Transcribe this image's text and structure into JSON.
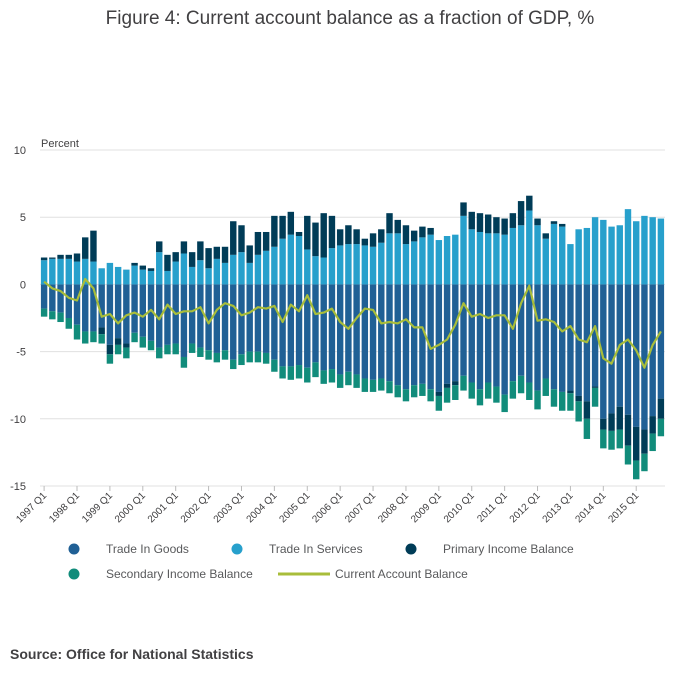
{
  "chart_data": {
    "type": "bar",
    "stacked": true,
    "title": "Figure 4: Current account balance as a fraction of GDP, %",
    "ylabel": "Percent",
    "ylim": [
      -15,
      10
    ],
    "yticks": [
      10,
      5,
      0,
      -5,
      -10,
      -15
    ],
    "grid": true,
    "start_year": 1997,
    "quarters_per_year": 4,
    "x_tick_labels": [
      "1997 Q1",
      "1998 Q1",
      "1999 Q1",
      "2000 Q1",
      "2001 Q1",
      "2002 Q1",
      "2003 Q1",
      "2004 Q1",
      "2005 Q1",
      "2006 Q1",
      "2007 Q1",
      "2008 Q1",
      "2009 Q1",
      "2010 Q1",
      "2011 Q1",
      "2012 Q1",
      "2013 Q1",
      "2014 Q1",
      "2015 Q1"
    ],
    "legend_position": "bottom",
    "series": [
      {
        "name": "Trade In Goods",
        "color": "#206095",
        "values": [
          -1.8,
          -2.0,
          -2.1,
          -2.5,
          -3.0,
          -3.5,
          -3.5,
          -3.2,
          -4.5,
          -4.0,
          -4.4,
          -3.6,
          -3.9,
          -4.2,
          -4.7,
          -4.5,
          -4.4,
          -5.4,
          -4.4,
          -4.7,
          -4.9,
          -5.1,
          -4.9,
          -5.6,
          -5.2,
          -5.0,
          -5.0,
          -5.1,
          -5.6,
          -6.1,
          -6.1,
          -6.0,
          -6.2,
          -5.8,
          -6.4,
          -6.3,
          -6.7,
          -6.5,
          -6.7,
          -7.0,
          -7.1,
          -7.0,
          -7.2,
          -7.5,
          -7.8,
          -7.5,
          -7.4,
          -7.8,
          -8.0,
          -7.4,
          -7.2,
          -6.8,
          -7.3,
          -7.8,
          -7.3,
          -7.6,
          -8.2,
          -7.2,
          -6.8,
          -7.3,
          -7.9,
          -7.0,
          -7.8,
          -8.0,
          -7.9,
          -8.3,
          -8.7,
          -7.6,
          -10.0,
          -9.6,
          -9.1,
          -9.7,
          -10.6,
          -10.8,
          -9.8,
          -8.5
        ]
      },
      {
        "name": "Trade In Services",
        "color": "#27a0cc",
        "values": [
          1.8,
          1.9,
          1.9,
          1.9,
          1.7,
          1.9,
          1.7,
          1.2,
          1.6,
          1.3,
          1.1,
          1.4,
          1.1,
          1.0,
          2.4,
          1.0,
          1.7,
          2.3,
          1.3,
          1.8,
          1.2,
          1.9,
          1.6,
          2.2,
          2.4,
          1.6,
          2.2,
          2.5,
          2.8,
          3.4,
          3.7,
          3.6,
          2.6,
          2.1,
          2.0,
          2.7,
          2.9,
          3.0,
          3.0,
          2.9,
          2.8,
          3.1,
          3.8,
          3.8,
          3.0,
          3.2,
          3.5,
          3.7,
          3.3,
          3.6,
          3.7,
          5.1,
          4.1,
          3.9,
          3.8,
          3.8,
          3.7,
          4.2,
          4.4,
          5.5,
          4.4,
          3.4,
          4.5,
          4.3,
          3.0,
          4.1,
          4.2,
          5.0,
          4.8,
          4.3,
          4.4,
          5.6,
          4.7,
          5.1,
          5.0,
          4.9
        ]
      },
      {
        "name": "Primary Income Balance",
        "color": "#003c57",
        "values": [
          0.2,
          0.1,
          0.3,
          0.3,
          0.6,
          1.6,
          2.3,
          -0.5,
          -0.7,
          -0.5,
          -0.3,
          0.2,
          0.3,
          0.2,
          0.8,
          1.2,
          0.7,
          0.9,
          1.1,
          1.4,
          1.5,
          0.9,
          1.2,
          2.5,
          2.0,
          1.3,
          1.7,
          1.4,
          2.3,
          1.7,
          1.7,
          0.3,
          2.5,
          2.5,
          3.3,
          2.4,
          1.2,
          1.4,
          1.1,
          0.5,
          1.0,
          1.0,
          1.5,
          1.0,
          1.4,
          0.8,
          0.8,
          0.5,
          -0.3,
          -0.3,
          -0.3,
          1.0,
          1.3,
          1.4,
          1.4,
          1.2,
          1.2,
          1.1,
          1.8,
          1.1,
          0.5,
          0.4,
          0.2,
          0.2,
          -0.2,
          -0.4,
          -1.3,
          -0.1,
          -0.8,
          -1.3,
          -1.7,
          -2.3,
          -2.5,
          -1.8,
          -1.3,
          -1.5
        ]
      },
      {
        "name": "Secondary Income Balance",
        "color": "#118c7b",
        "values": [
          -0.6,
          -0.6,
          -0.7,
          -0.8,
          -1.1,
          -0.9,
          -0.8,
          -0.7,
          -0.7,
          -0.7,
          -0.8,
          -0.7,
          -0.8,
          -0.7,
          -0.8,
          -0.7,
          -0.8,
          -0.8,
          -0.7,
          -0.7,
          -0.7,
          -0.7,
          -0.7,
          -0.7,
          -0.8,
          -0.8,
          -0.8,
          -0.8,
          -0.9,
          -0.9,
          -1.0,
          -1.0,
          -1.1,
          -1.1,
          -1.0,
          -1.0,
          -1.0,
          -1.0,
          -1.0,
          -1.0,
          -0.9,
          -0.9,
          -0.9,
          -0.9,
          -0.9,
          -0.9,
          -0.9,
          -0.9,
          -1.1,
          -1.1,
          -1.1,
          -1.1,
          -1.2,
          -1.2,
          -1.2,
          -1.2,
          -1.3,
          -1.3,
          -1.3,
          -1.3,
          -1.4,
          -1.3,
          -1.3,
          -1.4,
          -1.3,
          -1.5,
          -1.5,
          -1.4,
          -1.4,
          -1.4,
          -1.4,
          -1.4,
          -1.4,
          -1.3,
          -1.3,
          -1.3
        ]
      },
      {
        "name": "Current Account Balance",
        "color": "#a8bd3a",
        "type": "line",
        "values": [
          0.2,
          -0.3,
          -0.5,
          -1.0,
          -1.2,
          0.4,
          -0.3,
          -2.4,
          -2.2,
          -2.9,
          -2.3,
          -2.1,
          -2.4,
          -1.9,
          -2.6,
          -1.5,
          -2.2,
          -2.0,
          -2.0,
          -1.7,
          -2.9,
          -1.9,
          -1.4,
          -1.6,
          -2.3,
          -2.1,
          -1.7,
          -1.8,
          -1.6,
          -2.8,
          -1.5,
          -2.0,
          -0.8,
          -2.2,
          -2.1,
          -1.8,
          -2.8,
          -3.3,
          -2.5,
          -1.8,
          -1.9,
          -2.9,
          -2.8,
          -2.9,
          -2.6,
          -3.2,
          -3.2,
          -4.8,
          -4.5,
          -4.1,
          -3.0,
          -1.4,
          -2.4,
          -2.2,
          -2.5,
          -2.3,
          -2.3,
          -3.3,
          -1.4,
          -0.1,
          -2.7,
          -2.6,
          -2.8,
          -3.5,
          -3.1,
          -4.1,
          -4.3,
          -3.1,
          -5.5,
          -5.9,
          -4.5,
          -4.1,
          -4.9,
          -6.2,
          -4.5,
          -3.5
        ]
      }
    ]
  },
  "legend": {
    "items": [
      {
        "label": "Trade In Goods",
        "color": "#206095",
        "icon": "circle"
      },
      {
        "label": "Trade In Services",
        "color": "#27a0cc",
        "icon": "circle"
      },
      {
        "label": "Primary Income Balance",
        "color": "#003c57",
        "icon": "circle"
      },
      {
        "label": "Secondary Income Balance",
        "color": "#118c7b",
        "icon": "circle"
      },
      {
        "label": "Current Account Balance",
        "color": "#a8bd3a",
        "icon": "line"
      }
    ]
  },
  "source": "Source: Office for National Statistics"
}
